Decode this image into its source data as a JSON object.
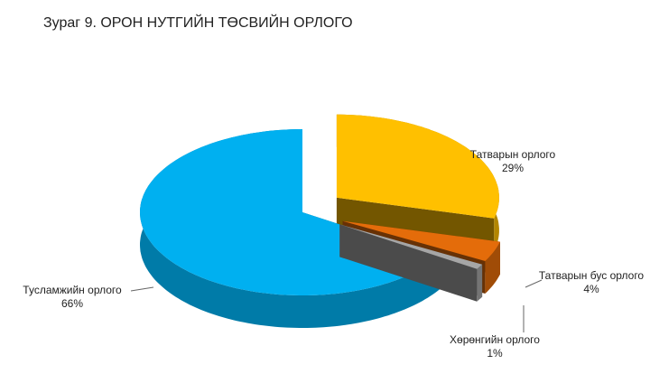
{
  "chart_data": {
    "type": "pie3d",
    "title": "Зураг  9.  ОРОН НУТГИЙН ТӨСВИЙН ОРЛОГО",
    "categories": [
      "Татварын орлого",
      "Татварын бус орлого",
      "Хөрөнгийн орлого",
      "Тусламжийн орлого"
    ],
    "values": [
      29,
      4,
      1,
      66
    ],
    "value_labels": [
      "29%",
      "4%",
      "1%",
      "66%"
    ],
    "colors": [
      "#ffc000",
      "#e46c0a",
      "#a6a6a6",
      "#00b0f0"
    ],
    "exploded": [
      true,
      true,
      true,
      false
    ]
  }
}
